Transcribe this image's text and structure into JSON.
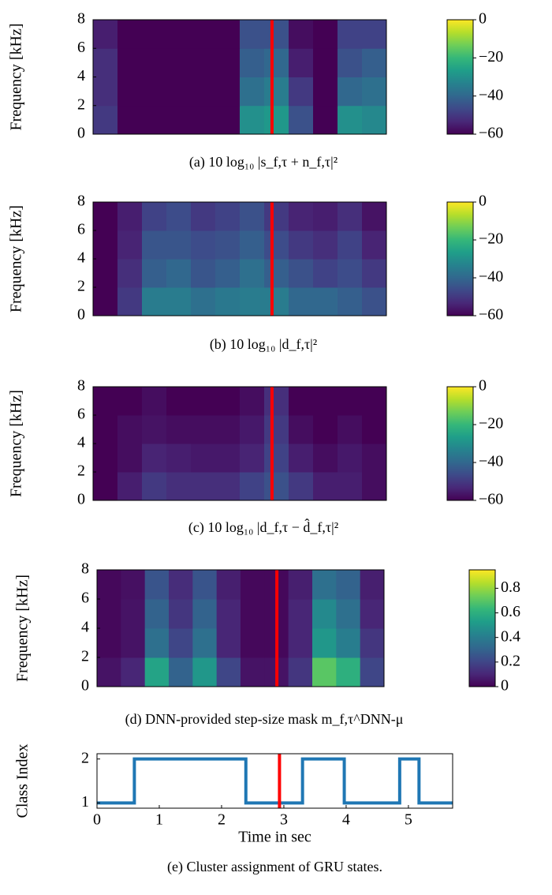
{
  "chart_data": [
    {
      "type": "heatmap",
      "ylabel": "Frequency [kHz]",
      "caption": "(a) 10 log₁₀ |s_f,τ + n_f,τ|²",
      "ylim": [
        0,
        8
      ],
      "yticks": [
        0,
        2,
        4,
        6,
        8
      ],
      "xlim": [
        0,
        6
      ],
      "vline": 3.66,
      "vline_color": "#ff0000",
      "colormap": "viridis",
      "zlim": [
        -60,
        0
      ],
      "zticks": [
        {
          "value": 0,
          "label": "0"
        },
        {
          "value": -20,
          "label": "−20"
        },
        {
          "value": -40,
          "label": "−40"
        },
        {
          "value": -60,
          "label": "−60"
        }
      ],
      "z": [
        [
          -50,
          -60,
          -60,
          -60,
          -60,
          -60,
          -30,
          -28,
          -45,
          -60,
          -30,
          -32
        ],
        [
          -52,
          -60,
          -60,
          -60,
          -60,
          -60,
          -38,
          -35,
          -50,
          -60,
          -40,
          -38
        ],
        [
          -52,
          -60,
          -60,
          -60,
          -60,
          -60,
          -42,
          -40,
          -55,
          -60,
          -45,
          -42
        ],
        [
          -55,
          -60,
          -60,
          -60,
          -60,
          -60,
          -45,
          -45,
          -58,
          -60,
          -48,
          -48
        ]
      ]
    },
    {
      "type": "heatmap",
      "ylabel": "Frequency [kHz]",
      "caption": "(b) 10 log₁₀ |d_f,τ|²",
      "ylim": [
        0,
        8
      ],
      "yticks": [
        0,
        2,
        4,
        6,
        8
      ],
      "xlim": [
        0,
        6
      ],
      "vline": 3.66,
      "vline_color": "#ff0000",
      "colormap": "viridis",
      "zlim": [
        -60,
        0
      ],
      "zticks": [
        {
          "value": 0,
          "label": "0"
        },
        {
          "value": -20,
          "label": "−20"
        },
        {
          "value": -40,
          "label": "−40"
        },
        {
          "value": -60,
          "label": "−60"
        }
      ],
      "z": [
        [
          -60,
          -50,
          -35,
          -35,
          -38,
          -36,
          -35,
          -35,
          -40,
          -40,
          -42,
          -45
        ],
        [
          -60,
          -52,
          -42,
          -40,
          -44,
          -42,
          -38,
          -42,
          -45,
          -48,
          -46,
          -50
        ],
        [
          -60,
          -54,
          -44,
          -44,
          -46,
          -45,
          -42,
          -46,
          -50,
          -52,
          -48,
          -54
        ],
        [
          -60,
          -55,
          -48,
          -46,
          -50,
          -48,
          -45,
          -50,
          -54,
          -55,
          -52,
          -57
        ]
      ]
    },
    {
      "type": "heatmap",
      "ylabel": "Frequency [kHz]",
      "caption": "(c) 10 log₁₀ |d_f,τ − d̂_f,τ|²",
      "ylim": [
        0,
        8
      ],
      "yticks": [
        0,
        2,
        4,
        6,
        8
      ],
      "xlim": [
        0,
        6
      ],
      "vline": 3.66,
      "vline_color": "#ff0000",
      "colormap": "viridis",
      "zlim": [
        -60,
        0
      ],
      "zticks": [
        {
          "value": 0,
          "label": "0"
        },
        {
          "value": -20,
          "label": "−20"
        },
        {
          "value": -40,
          "label": "−40"
        },
        {
          "value": -60,
          "label": "−60"
        }
      ],
      "z": [
        [
          -60,
          -55,
          -50,
          -52,
          -52,
          -52,
          -48,
          -45,
          -50,
          -55,
          -55,
          -58
        ],
        [
          -60,
          -58,
          -54,
          -55,
          -56,
          -56,
          -54,
          -48,
          -55,
          -58,
          -56,
          -58
        ],
        [
          -60,
          -58,
          -57,
          -58,
          -58,
          -58,
          -56,
          -50,
          -58,
          -60,
          -58,
          -60
        ],
        [
          -60,
          -60,
          -58,
          -60,
          -60,
          -60,
          -58,
          -52,
          -60,
          -60,
          -60,
          -60
        ]
      ]
    },
    {
      "type": "heatmap",
      "ylabel": "Frequency [kHz]",
      "caption": "(d) DNN-provided step-size mask m_f,τ^DNN-μ",
      "ylim": [
        0,
        8
      ],
      "yticks": [
        0,
        2,
        4,
        6,
        8
      ],
      "xlim": [
        0,
        6
      ],
      "vline": 3.76,
      "vline_color": "#ff0000",
      "colormap": "viridis",
      "zlim": [
        0,
        0.95
      ],
      "zticks": [
        0,
        0.2,
        0.4,
        0.6,
        0.8
      ],
      "z": [
        [
          0.05,
          0.1,
          0.55,
          0.3,
          0.5,
          0.2,
          0.05,
          0.05,
          0.15,
          0.7,
          0.6,
          0.2
        ],
        [
          0.02,
          0.05,
          0.35,
          0.2,
          0.35,
          0.1,
          0.02,
          0.02,
          0.1,
          0.5,
          0.4,
          0.15
        ],
        [
          0.02,
          0.05,
          0.3,
          0.15,
          0.3,
          0.1,
          0.02,
          0.02,
          0.1,
          0.45,
          0.35,
          0.1
        ],
        [
          0.02,
          0.04,
          0.25,
          0.12,
          0.25,
          0.08,
          0.02,
          0.02,
          0.08,
          0.35,
          0.3,
          0.08
        ]
      ]
    },
    {
      "type": "line",
      "ylabel": "Class Index",
      "xlabel": "Time in sec",
      "caption": "(e) Cluster assignment of GRU states.",
      "xlim": [
        0,
        5.71
      ],
      "xticks": [
        0,
        1,
        2,
        3,
        4,
        5
      ],
      "ylim": [
        0.88,
        2.12
      ],
      "yticks": [
        1,
        2
      ],
      "vline": 2.93,
      "vline_color": "#ff0000",
      "color": "#1f77b4",
      "x": [
        0,
        0.6,
        0.6,
        2.39,
        2.39,
        3.3,
        3.3,
        3.97,
        3.97,
        4.86,
        4.86,
        5.17,
        5.17,
        5.71
      ],
      "values": [
        1,
        1,
        2,
        2,
        1,
        1,
        2,
        2,
        1,
        1,
        2,
        2,
        1,
        1
      ]
    }
  ]
}
